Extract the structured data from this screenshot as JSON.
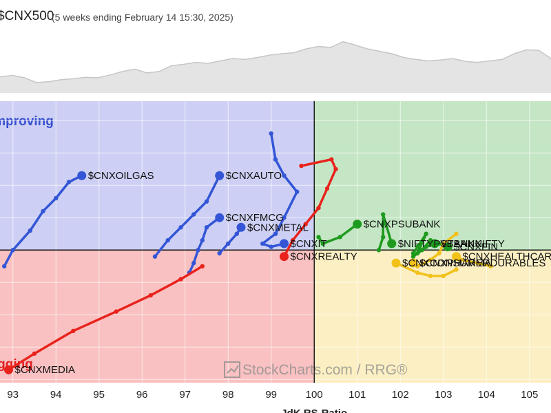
{
  "header": {
    "title": "$CNX500",
    "subtitle": "(5 weeks ending February 14 15:30, 2025)"
  },
  "chart_data": {
    "type": "scatter",
    "subtype": "relative-rotation-graph",
    "xlabel": "JdK RS-Ratio",
    "xlim": [
      92.7,
      105.5
    ],
    "ylim": [
      95.9,
      104.6
    ],
    "x_ticks": [
      "93",
      "94",
      "95",
      "96",
      "97",
      "98",
      "99",
      "100",
      "101",
      "102",
      "103",
      "104",
      "105"
    ],
    "quadrants": [
      {
        "name": "Improving",
        "label": "Improving",
        "color": "#cdd0f4"
      },
      {
        "name": "Leading",
        "label": "",
        "color": "#c4e6c4"
      },
      {
        "name": "Weakening",
        "label": "",
        "color": "#fbefc3"
      },
      {
        "name": "Lagging",
        "label": "Lagging",
        "color": "#f9c1c1"
      }
    ],
    "quadrant_label_colors": {
      "improving": "#3850d0",
      "lagging": "#e02020"
    },
    "watermark": "StockCharts.com / RRG®",
    "series": [
      {
        "name": "$CNXOILGAS",
        "color": "#3355d6",
        "points": [
          [
            92.8,
            99.5
          ],
          [
            93.0,
            100.0
          ],
          [
            93.4,
            100.6
          ],
          [
            93.7,
            101.2
          ],
          [
            94.0,
            101.6
          ],
          [
            94.3,
            102.1
          ],
          [
            94.6,
            102.3
          ]
        ]
      },
      {
        "name": "$CNXAUTO",
        "color": "#3355d6",
        "points": [
          [
            96.3,
            99.8
          ],
          [
            96.6,
            100.3
          ],
          [
            96.9,
            100.7
          ],
          [
            97.2,
            101.1
          ],
          [
            97.5,
            101.5
          ],
          [
            97.8,
            102.3
          ]
        ]
      },
      {
        "name": "$CNXFMCG",
        "color": "#3355d6",
        "points": [
          [
            97.1,
            99.3
          ],
          [
            97.2,
            99.6
          ],
          [
            97.3,
            100.0
          ],
          [
            97.4,
            100.3
          ],
          [
            97.5,
            100.7
          ],
          [
            97.8,
            101.0
          ]
        ]
      },
      {
        "name": "$CNXMETAL",
        "color": "#3355d6",
        "points": [
          [
            97.8,
            99.9
          ],
          [
            98.0,
            100.2
          ],
          [
            98.2,
            100.5
          ],
          [
            98.3,
            100.7
          ]
        ]
      },
      {
        "name": "$CNXIT",
        "color": "#3355d6",
        "points": [
          [
            99.0,
            103.6
          ],
          [
            99.1,
            102.8
          ],
          [
            99.3,
            102.3
          ],
          [
            99.6,
            101.8
          ],
          [
            99.3,
            101.0
          ],
          [
            99.1,
            100.5
          ],
          [
            98.8,
            100.2
          ],
          [
            99.0,
            100.1
          ],
          [
            99.3,
            100.2
          ]
        ]
      },
      {
        "name": "$CNXREALTY",
        "color": "#e8231c",
        "points": [
          [
            99.7,
            102.6
          ],
          [
            100.4,
            102.8
          ],
          [
            100.5,
            102.5
          ],
          [
            100.3,
            101.9
          ],
          [
            100.1,
            101.3
          ],
          [
            99.8,
            100.8
          ],
          [
            99.5,
            100.3
          ],
          [
            99.3,
            99.8
          ]
        ]
      },
      {
        "name": "$CNXMEDIA",
        "color": "#e8231c",
        "points": [
          [
            97.4,
            99.5
          ],
          [
            96.9,
            99.1
          ],
          [
            96.2,
            98.6
          ],
          [
            95.4,
            98.1
          ],
          [
            94.4,
            97.5
          ],
          [
            93.5,
            96.8
          ],
          [
            92.9,
            96.3
          ]
        ]
      },
      {
        "name": "$CNXPSUBANK",
        "color": "#1e9a1e",
        "points": [
          [
            100.1,
            100.4
          ],
          [
            100.2,
            100.2
          ],
          [
            100.6,
            100.4
          ],
          [
            101.0,
            100.8
          ]
        ]
      },
      {
        "name": "$NIFTYPVTBANK",
        "color": "#1e9a1e",
        "points": [
          [
            101.5,
            100.0
          ],
          [
            101.6,
            100.4
          ],
          [
            101.6,
            100.8
          ],
          [
            101.6,
            101.1
          ],
          [
            101.8,
            100.2
          ]
        ]
      },
      {
        "name": "$BANKNIFTY",
        "color": "#1e9a1e",
        "points": [
          [
            102.3,
            99.9
          ],
          [
            102.4,
            100.1
          ],
          [
            102.6,
            100.5
          ],
          [
            102.4,
            99.9
          ],
          [
            102.6,
            100.1
          ],
          [
            102.8,
            100.2
          ]
        ]
      },
      {
        "name": "$CNXFIN",
        "color": "#1e9a1e",
        "points": [
          [
            102.3,
            99.8
          ],
          [
            102.5,
            100.0
          ],
          [
            102.7,
            100.3
          ],
          [
            102.9,
            100.2
          ],
          [
            103.1,
            100.1
          ]
        ]
      },
      {
        "name": "$CNXPHARMA",
        "color": "#f2c21b",
        "points": [
          [
            103.3,
            100.5
          ],
          [
            103.0,
            100.2
          ],
          [
            102.9,
            99.9
          ],
          [
            102.7,
            99.7
          ],
          [
            102.4,
            99.5
          ],
          [
            102.3,
            99.6
          ]
        ]
      },
      {
        "name": "$CNXHEALTHCARE",
        "color": "#f2c21b",
        "points": [
          [
            104.1,
            99.5
          ],
          [
            103.8,
            99.6
          ],
          [
            103.4,
            99.7
          ],
          [
            103.3,
            99.8
          ]
        ]
      },
      {
        "name": "$CNXCONSUMERDURABLES",
        "color": "#f2c21b",
        "points": [
          [
            103.3,
            99.4
          ],
          [
            103.0,
            99.2
          ],
          [
            102.7,
            99.2
          ],
          [
            102.4,
            99.3
          ],
          [
            101.9,
            99.6
          ]
        ]
      }
    ],
    "labels": [
      {
        "series": "$CNXOILGAS",
        "text": "$CNXOILGAS"
      },
      {
        "series": "$CNXAUTO",
        "text": "$CNXAUTO"
      },
      {
        "series": "$CNXFMCG",
        "text": "$CNXFMCG"
      },
      {
        "series": "$CNXMETAL",
        "text": "$CNXMETAL"
      },
      {
        "series": "$CNXIT",
        "text": "$CNXIT"
      },
      {
        "series": "$CNXREALTY",
        "text": "$CNXREALTY"
      },
      {
        "series": "$CNXMEDIA",
        "text": "$CNXMEDIA"
      },
      {
        "series": "$CNXPSUBANK",
        "text": "$CNXPSUBANK"
      },
      {
        "series": "$NIFTYPVTBANK",
        "text": "$NIFTYPVTBANK"
      },
      {
        "series": "$BANKNIFTY",
        "text": "$BANKNIFTY"
      },
      {
        "series": "$CNXFIN",
        "text": "$CNXFIN"
      },
      {
        "series": "$CNXPHARMA",
        "text": "$CNXPHARMA"
      },
      {
        "series": "$CNXHEALTHCARE",
        "text": "$CNXHEALTHCARE"
      },
      {
        "series": "$CNXCONSUMERDURABLES",
        "text": "$CNXCONSUMERDURABLES"
      }
    ],
    "benchmark_sparkline": [
      0.22,
      0.25,
      0.2,
      0.1,
      0.12,
      0.16,
      0.18,
      0.21,
      0.2,
      0.26,
      0.33,
      0.38,
      0.3,
      0.33,
      0.45,
      0.48,
      0.52,
      0.5,
      0.55,
      0.6,
      0.58,
      0.62,
      0.67,
      0.7,
      0.72,
      0.8,
      0.85,
      0.83,
      0.95,
      0.88,
      0.8,
      0.75,
      0.7,
      0.62,
      0.58,
      0.55,
      0.57,
      0.6,
      0.54,
      0.52,
      0.55,
      0.58,
      0.7,
      0.78,
      0.77,
      0.6
    ]
  }
}
